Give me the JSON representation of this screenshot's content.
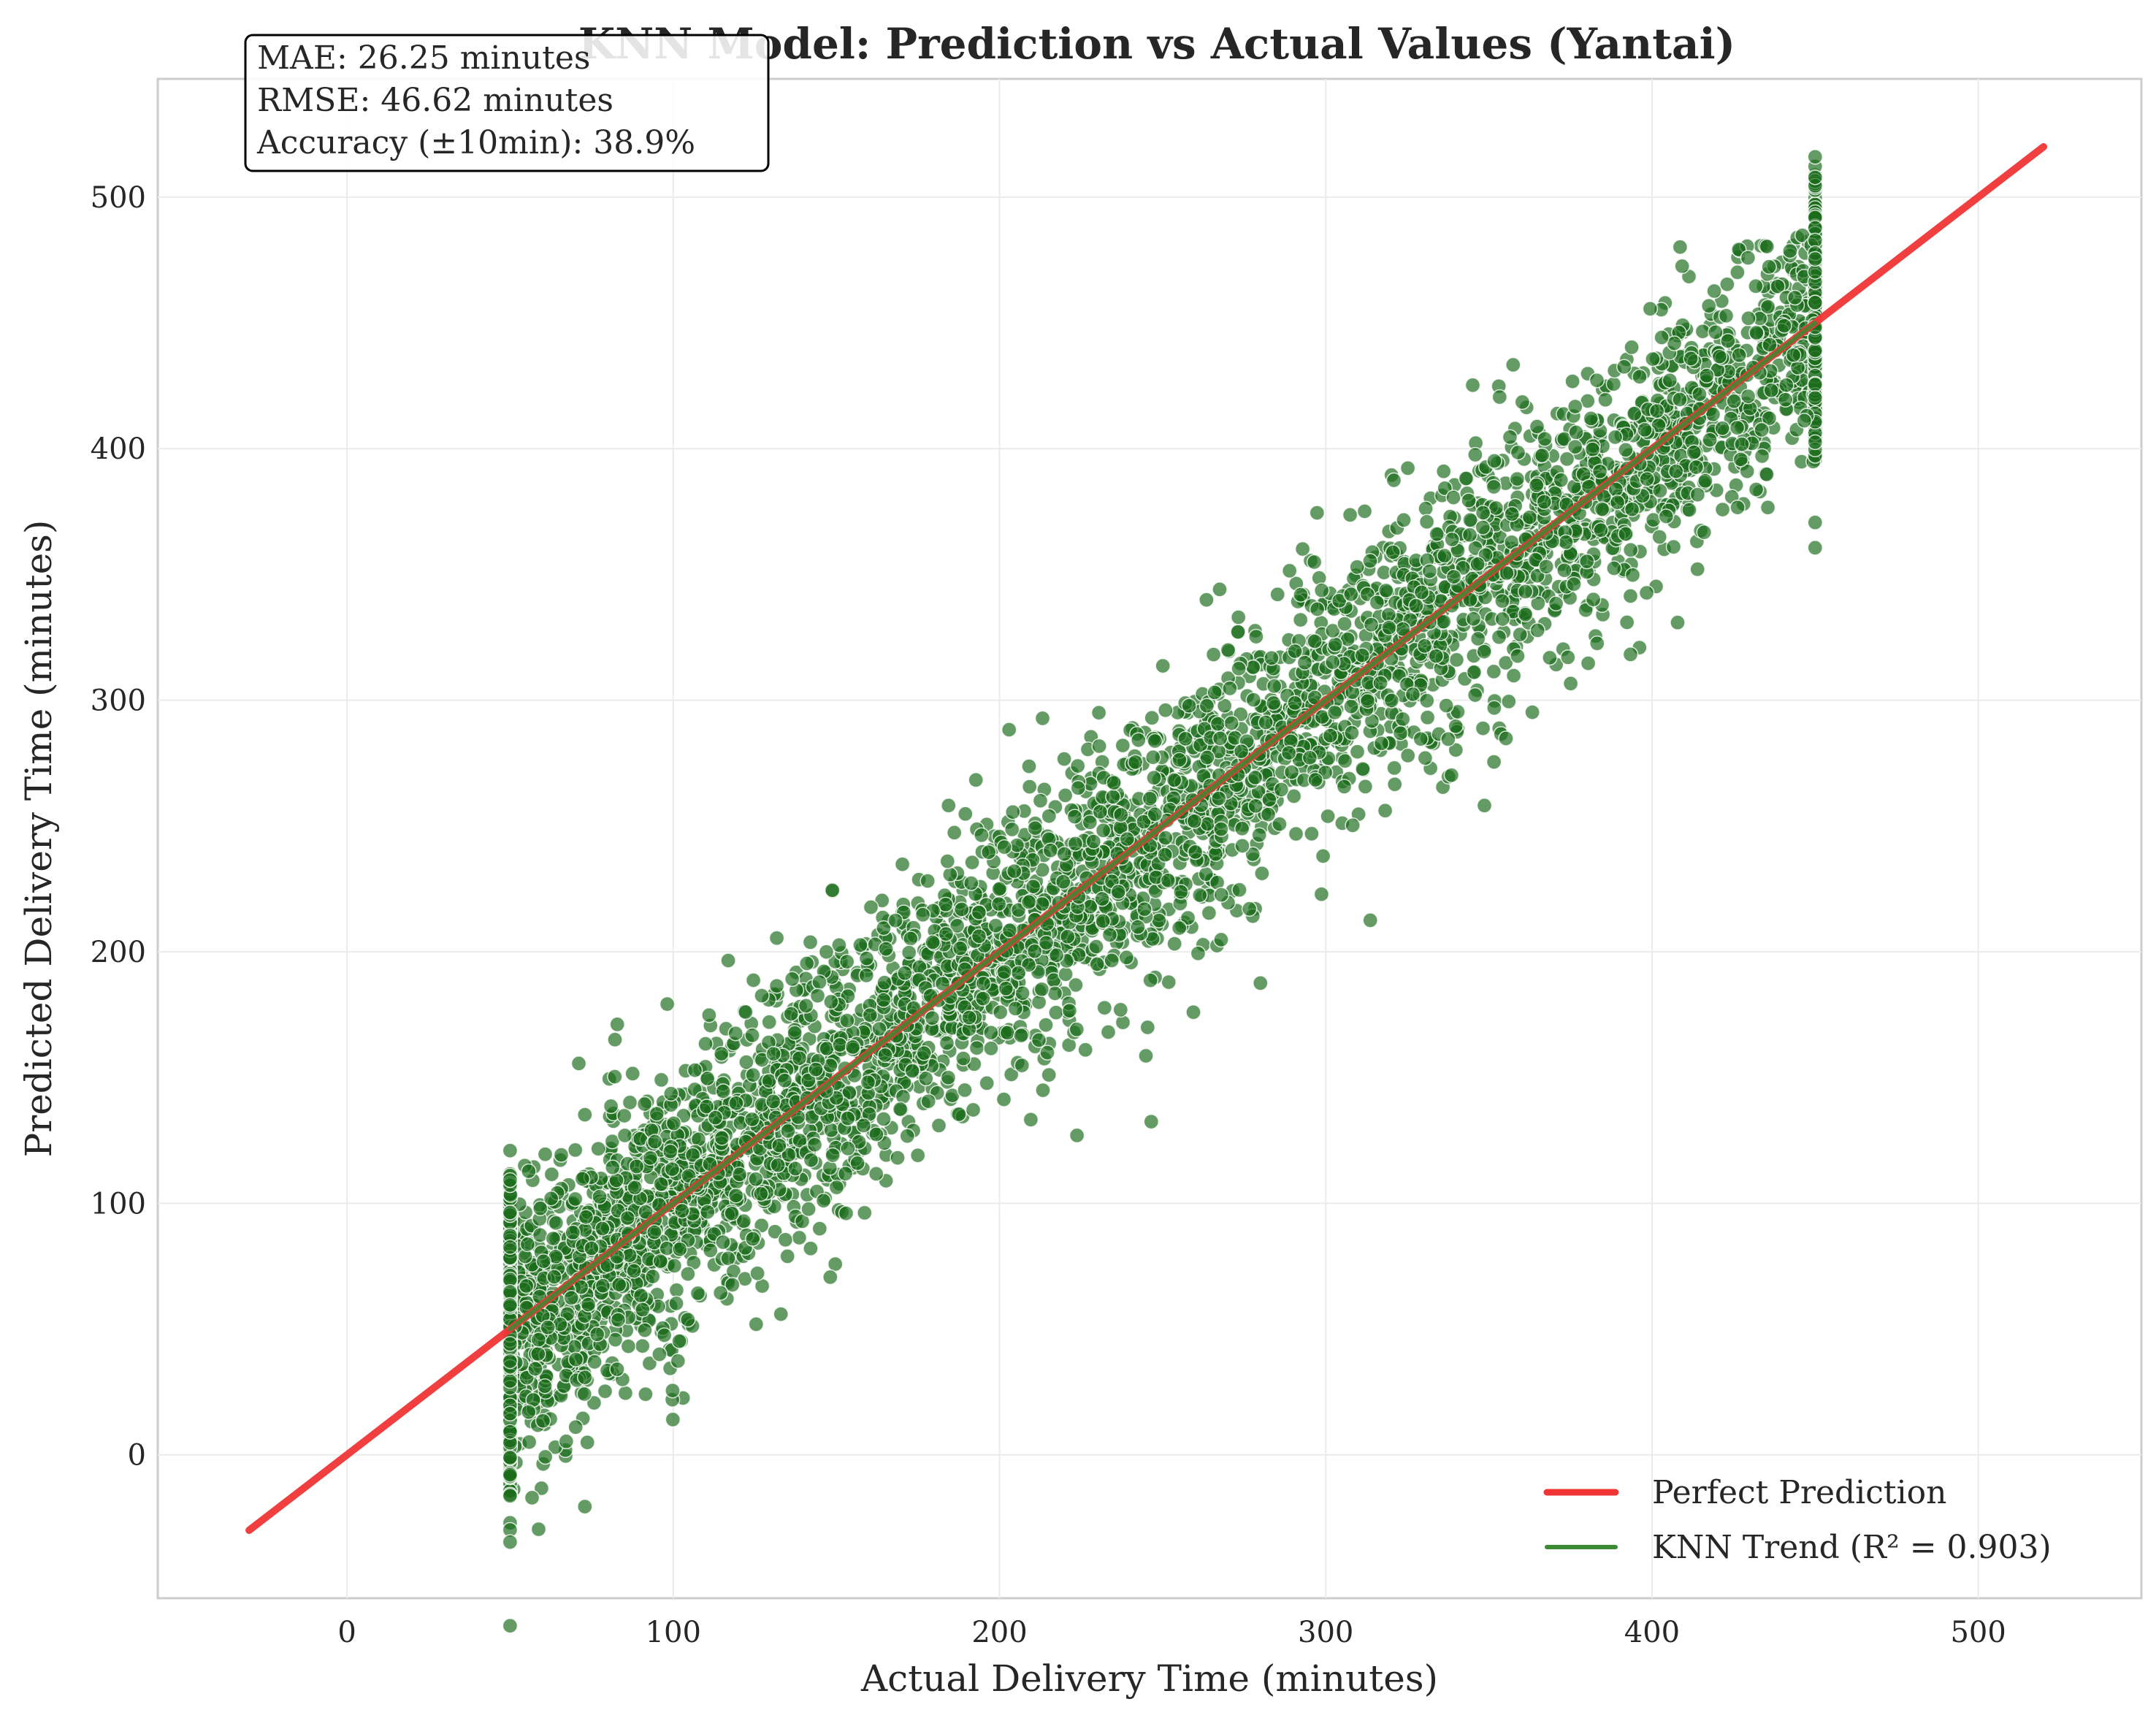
{
  "chart_data": {
    "type": "scatter",
    "title": "KNN Model: Prediction vs Actual Values (Yantai)",
    "xlabel": "Actual Delivery Time (minutes)",
    "ylabel": "Predicted Delivery Time (minutes)",
    "xlim": [
      -58,
      550
    ],
    "ylim": [
      -57,
      547
    ],
    "xticks": [
      0,
      100,
      200,
      300,
      400,
      500
    ],
    "yticks": [
      0,
      100,
      200,
      300,
      400,
      500
    ],
    "grid": true,
    "legend_position": "bottom-right",
    "series": [
      {
        "name": "Perfect Prediction",
        "kind": "line",
        "color": "#f03535",
        "x": [
          -30,
          520
        ],
        "y": [
          -30,
          520
        ]
      },
      {
        "name": "KNN Trend (R² = 0.903)",
        "kind": "line",
        "color": "#3a8a32",
        "x": [
          50,
          450
        ],
        "y": [
          50,
          450
        ]
      },
      {
        "name": "",
        "kind": "scatter",
        "color": "#1a6b1a",
        "description_points": "simulated cloud around y=x for x in [50,450], clipped at x=50 and x=450",
        "x_range": [
          50,
          450
        ],
        "noise_sd": 26,
        "n_points": 5200
      }
    ],
    "annotations": [
      "MAE: 26.25 minutes",
      "RMSE: 46.62 minutes",
      "Accuracy (±10min): 38.9%"
    ]
  }
}
